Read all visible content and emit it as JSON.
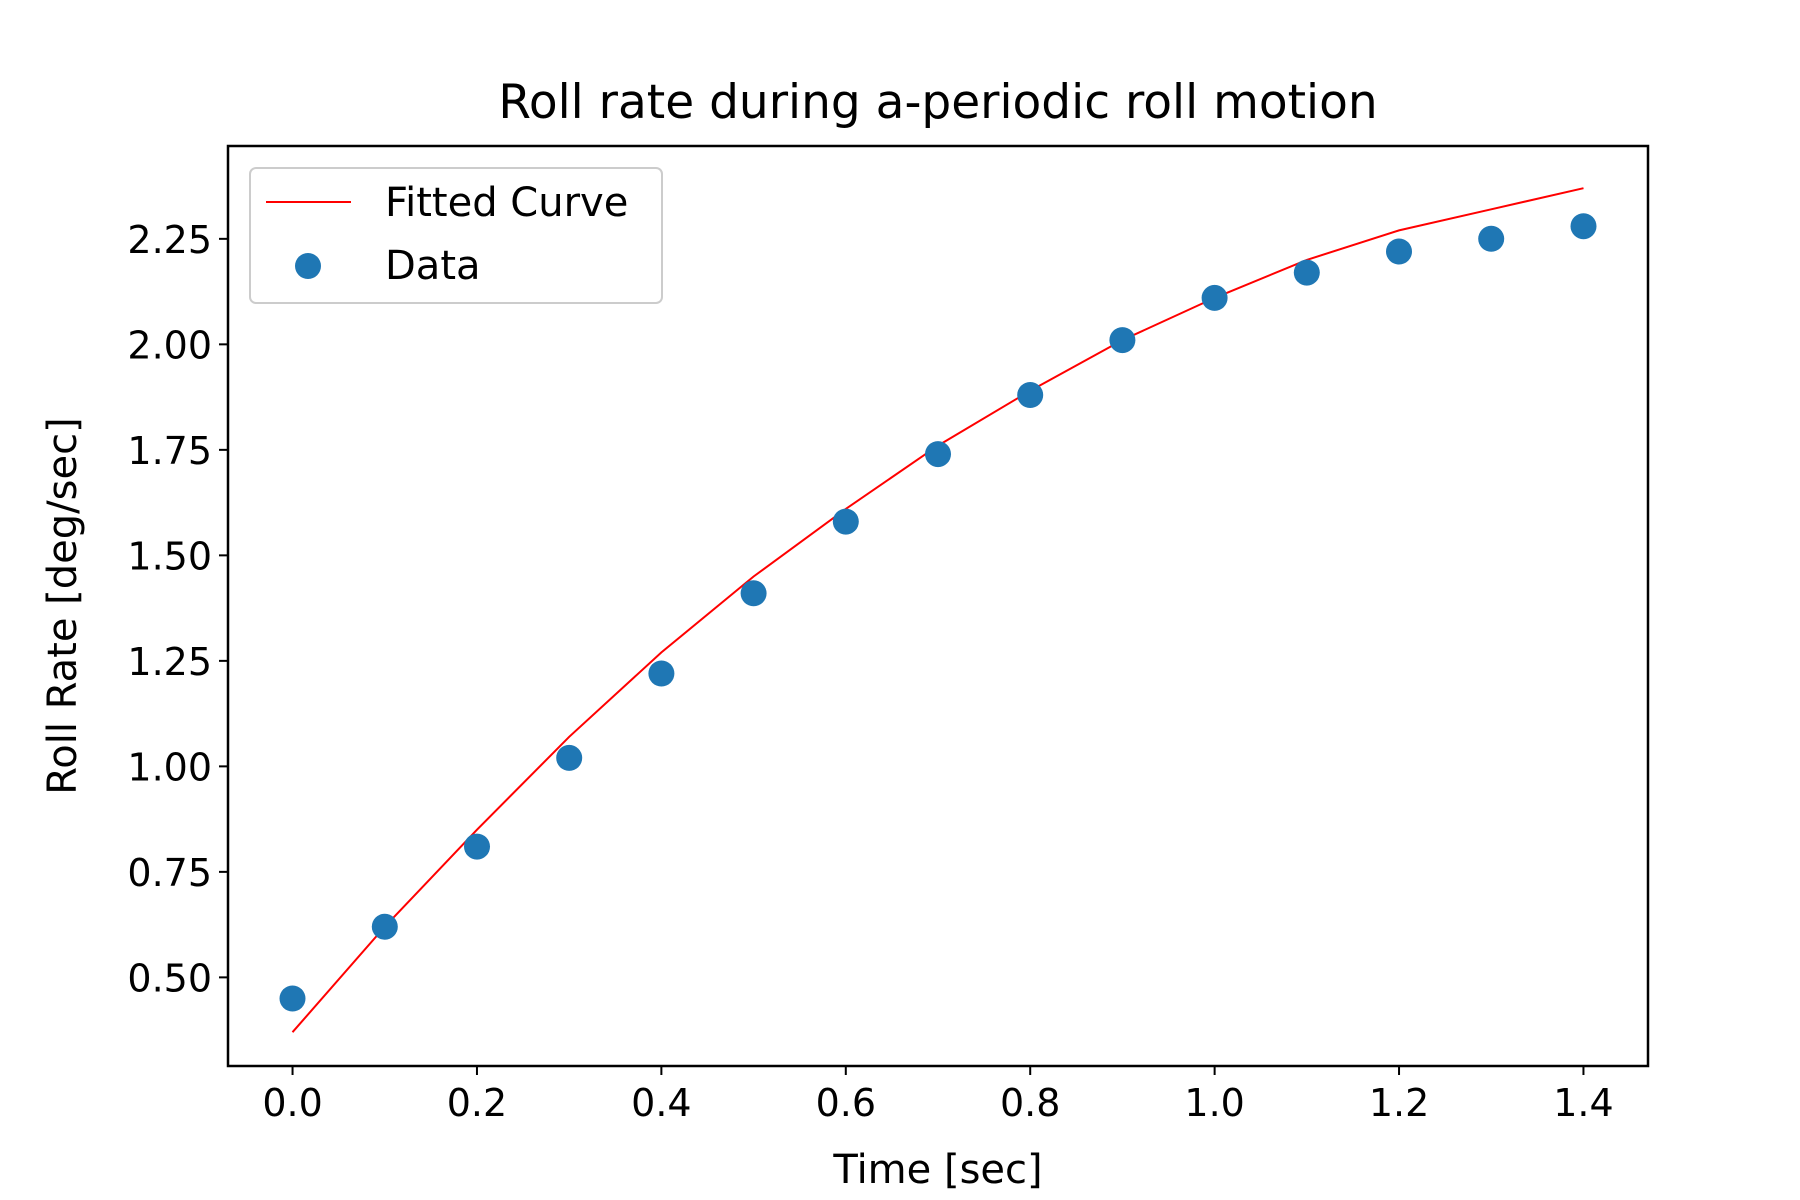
{
  "chart_data": {
    "type": "scatter",
    "title": "Roll rate during a-periodic roll motion",
    "xlabel": "Time [sec]",
    "ylabel": "Roll Rate [deg/sec]",
    "xlim": [
      -0.07,
      1.47
    ],
    "ylim": [
      0.29,
      2.47
    ],
    "x_ticks": [
      0.0,
      0.2,
      0.4,
      0.6,
      0.8,
      1.0,
      1.2,
      1.4
    ],
    "x_tick_labels": [
      "0.0",
      "0.2",
      "0.4",
      "0.6",
      "0.8",
      "1.0",
      "1.2",
      "1.4"
    ],
    "y_ticks": [
      0.5,
      0.75,
      1.0,
      1.25,
      1.5,
      1.75,
      2.0,
      2.25
    ],
    "y_tick_labels": [
      "0.50",
      "0.75",
      "1.00",
      "1.25",
      "1.50",
      "1.75",
      "2.00",
      "2.25"
    ],
    "grid": false,
    "legend_position": "upper-left",
    "series": [
      {
        "name": "Fitted Curve",
        "kind": "line",
        "color": "#ff0000",
        "x": [
          0.0,
          0.1,
          0.2,
          0.3,
          0.4,
          0.5,
          0.6,
          0.7,
          0.8,
          0.9,
          1.0,
          1.1,
          1.2,
          1.3,
          1.4
        ],
        "y": [
          0.37,
          0.62,
          0.85,
          1.07,
          1.27,
          1.45,
          1.61,
          1.76,
          1.89,
          2.01,
          2.11,
          2.2,
          2.27,
          2.32,
          2.37
        ]
      },
      {
        "name": "Data",
        "kind": "scatter",
        "color": "#1f77b4",
        "x": [
          0.0,
          0.1,
          0.2,
          0.3,
          0.4,
          0.5,
          0.6,
          0.7,
          0.8,
          0.9,
          1.0,
          1.1,
          1.2,
          1.3,
          1.4
        ],
        "y": [
          0.45,
          0.62,
          0.81,
          1.02,
          1.22,
          1.41,
          1.58,
          1.74,
          1.88,
          2.01,
          2.11,
          2.17,
          2.22,
          2.25,
          2.28
        ]
      }
    ]
  }
}
